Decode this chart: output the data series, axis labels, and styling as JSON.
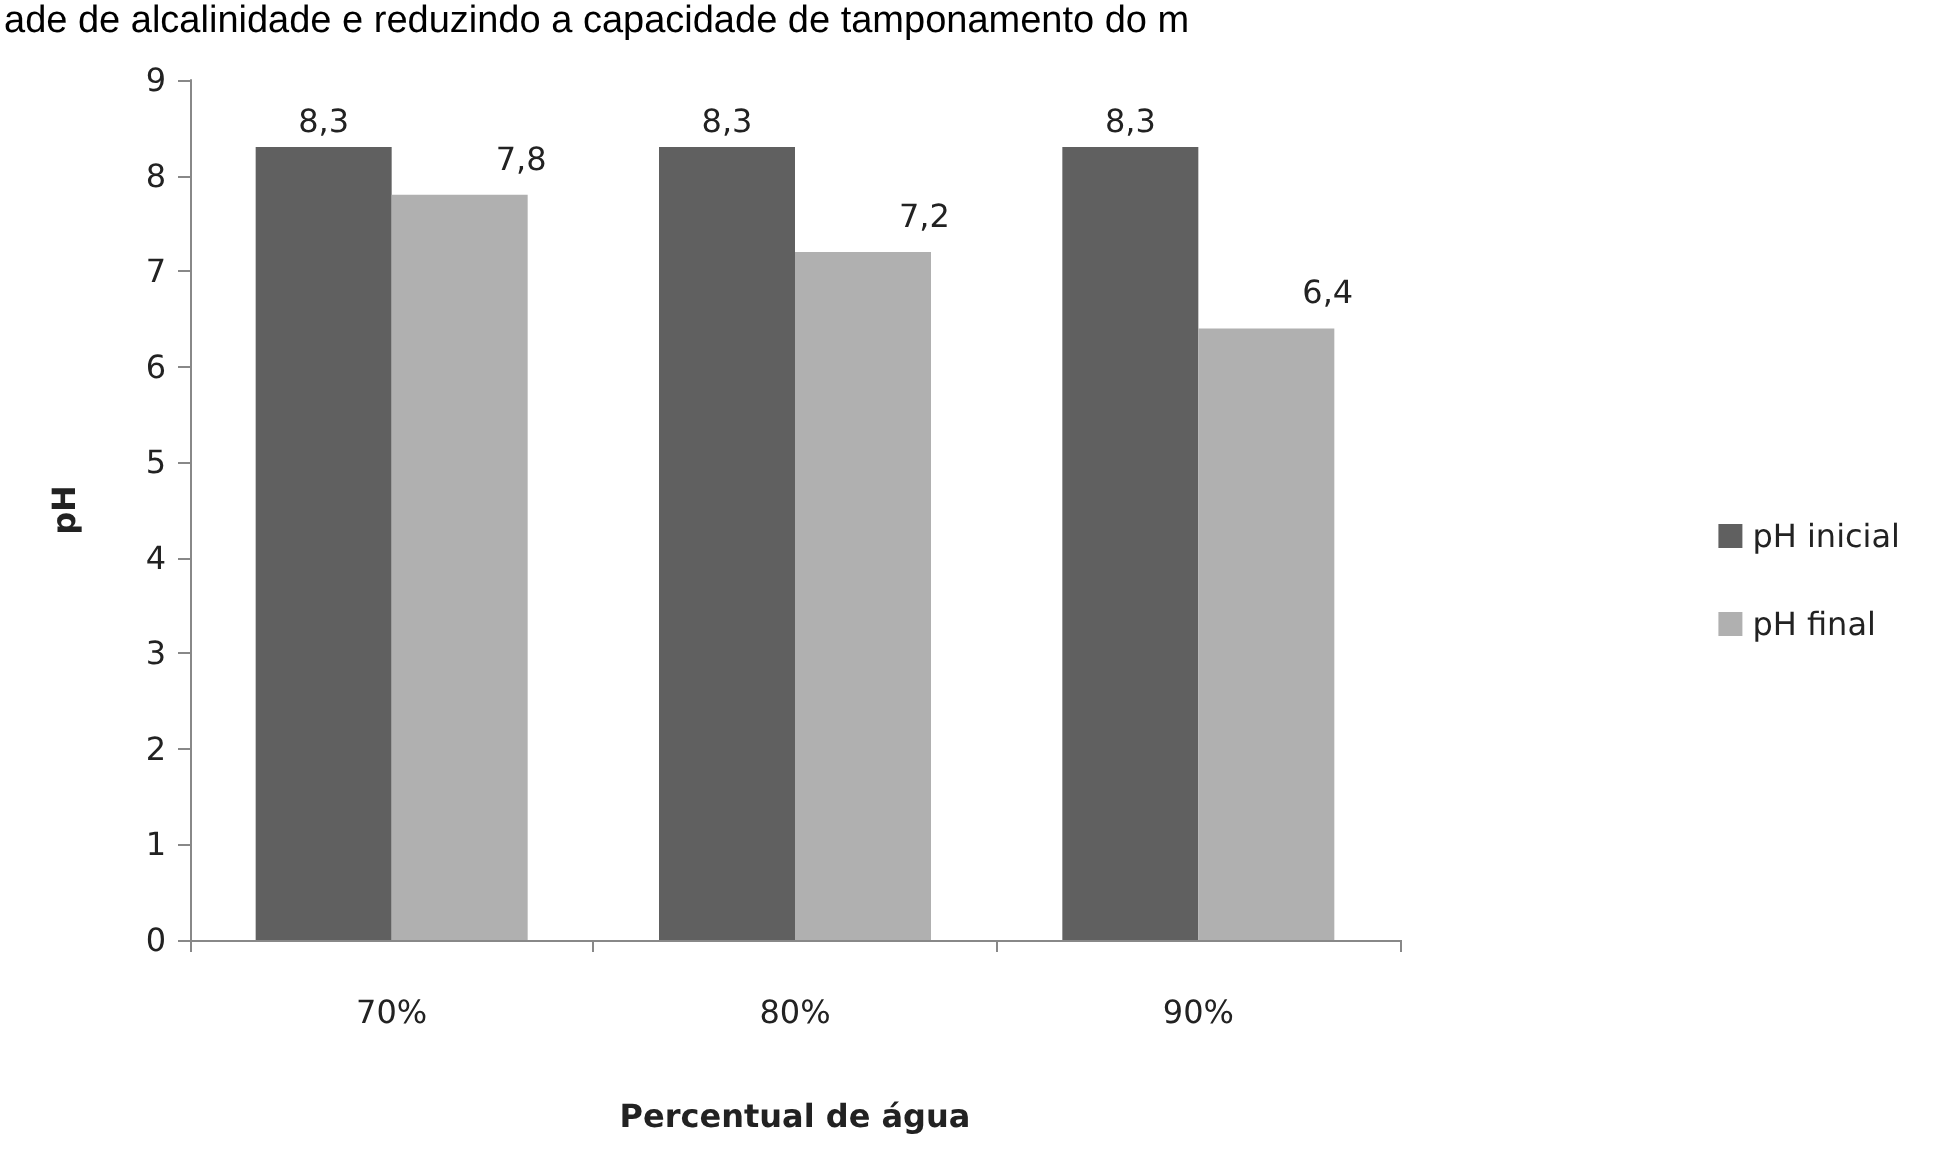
{
  "chart_data": {
    "type": "bar",
    "xlabel": "Percentual de água",
    "ylabel": "pH",
    "annotations": [
      "ade de alcalinidade e reduzindo a capacidade de tamponamento do m"
    ],
    "categories": [
      "70%",
      "80%",
      "90%"
    ],
    "series": [
      {
        "name": "pH inicial",
        "color": "#606060",
        "values": [
          8.3,
          8.3,
          8.3
        ],
        "value_labels": [
          "8,3",
          "8,3",
          "8,3"
        ]
      },
      {
        "name": "pH final",
        "color": "#b0b0b0",
        "values": [
          7.8,
          7.2,
          6.4
        ],
        "value_labels": [
          "7,8",
          "7,2",
          "6,4"
        ]
      }
    ],
    "ylim": [
      0,
      9
    ],
    "yticks": [
      0,
      1,
      2,
      3,
      4,
      5,
      6,
      7,
      8,
      9
    ],
    "grid": false,
    "legend": "right"
  }
}
